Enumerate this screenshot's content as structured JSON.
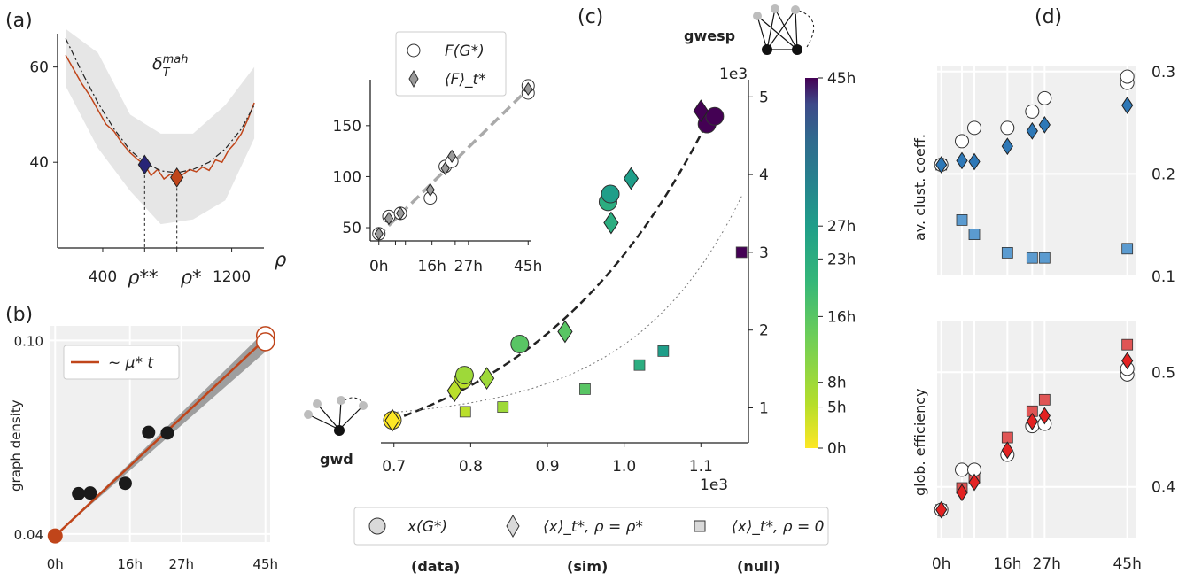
{
  "panel_labels": {
    "a": "(a)",
    "b": "(b)",
    "c": "(c)",
    "d": "(d)"
  },
  "chart_data": [
    {
      "id": "a",
      "type": "line",
      "title": "δ_T^mah",
      "xlabel": "ρ",
      "xticks": [
        "400",
        "1200"
      ],
      "yticks": [
        "40",
        "60"
      ],
      "xlim": [
        120,
        1400
      ],
      "ylim": [
        22,
        67
      ],
      "markers": [
        {
          "label": "ρ**",
          "x": 660,
          "y": 39.5,
          "color": "#272477"
        },
        {
          "label": "ρ*",
          "x": 860,
          "y": 36.8,
          "color": "#c0451a"
        }
      ],
      "series": [
        {
          "role": "simulated",
          "color": "#c0451a",
          "x": [
            170,
            220,
            270,
            320,
            370,
            420,
            470,
            520,
            570,
            620,
            660,
            700,
            740,
            780,
            820,
            860,
            900,
            940,
            980,
            1020,
            1060,
            1100,
            1140,
            1180,
            1220,
            1260,
            1300,
            1340
          ],
          "y": [
            62.5,
            59.5,
            56.5,
            54,
            51,
            48,
            46.5,
            44,
            42,
            40.5,
            39.5,
            37.2,
            38.5,
            36.5,
            37.5,
            36.8,
            37.5,
            38.5,
            38,
            39,
            38.3,
            40.5,
            40,
            42.5,
            44,
            46,
            49,
            52.5
          ]
        },
        {
          "role": "fit",
          "color": "#222222",
          "x": [
            170,
            270,
            370,
            470,
            570,
            660,
            760,
            860,
            960,
            1060,
            1160,
            1260,
            1340
          ],
          "y": [
            66,
            59,
            52.5,
            47,
            42.5,
            40,
            38.2,
            37.8,
            38.5,
            40,
            42.8,
            47,
            52
          ]
        }
      ],
      "band": {
        "x": [
          170,
          370,
          570,
          760,
          960,
          1160,
          1340
        ],
        "lower": [
          56,
          43,
          34,
          27,
          28,
          32,
          45
        ],
        "upper": [
          68,
          63,
          50,
          46,
          46,
          52,
          60
        ]
      }
    },
    {
      "id": "b",
      "type": "scatter",
      "ylabel": "graph density",
      "xticks": [
        "0h",
        "16h",
        "27h",
        "45h"
      ],
      "xtick_values": [
        0,
        16,
        27,
        45
      ],
      "yticks": [
        "0.04",
        "0.10"
      ],
      "ytick_values": [
        0.04,
        0.1
      ],
      "xlim": [
        -1,
        46
      ],
      "ylim": [
        0.0375,
        0.1045
      ],
      "legend": "~ μ* t",
      "line": {
        "x": [
          0,
          45
        ],
        "y": [
          0.0394,
          0.1005
        ],
        "color": "#c0451a"
      },
      "points": {
        "x": [
          5,
          7.5,
          15,
          20,
          24,
          45,
          45
        ],
        "y": [
          0.0525,
          0.0527,
          0.0557,
          0.0715,
          0.0713,
          0.1015,
          0.1015
        ],
        "colors": [
          "#1a1a1a",
          "#1a1a1a",
          "#1a1a1a",
          "#1a1a1a",
          "#1a1a1a",
          "#ffffff",
          "#ffffff"
        ]
      },
      "first_point": {
        "x": 0,
        "y": 0.0394,
        "color": "#c0451a"
      }
    },
    {
      "id": "a_inset",
      "type": "scatter",
      "xticks": [
        "0h",
        "16h",
        "27h",
        "45h"
      ],
      "yticks": [
        "50",
        "100",
        "150"
      ],
      "xlim": [
        -1,
        46
      ],
      "ylim": [
        37,
        195
      ],
      "legend": [
        "F(G*)",
        "⟨F⟩_t*"
      ],
      "data": {
        "x": [
          0,
          3,
          6.5,
          15.5,
          20,
          22,
          45,
          45
        ],
        "y": [
          44,
          61,
          64,
          79,
          110,
          115,
          182,
          189
        ]
      },
      "sim": {
        "x": [
          0,
          3,
          6.5,
          15.5,
          20,
          22,
          45
        ],
        "y": [
          44,
          59,
          64,
          87,
          108,
          120,
          186
        ]
      }
    },
    {
      "id": "c",
      "type": "scatter",
      "xlabel": "1e3",
      "ylabel": "1e3",
      "xticks": [
        "0.7",
        "0.8",
        "0.9",
        "1.0",
        "1.1"
      ],
      "yticks": [
        "1",
        "2",
        "3",
        "4",
        "5"
      ],
      "xlim": [
        0.683,
        1.162
      ],
      "ylim": [
        0.55,
        5.22
      ],
      "node_labels": {
        "x": "gwd",
        "y": "gwesp"
      },
      "colorbar": {
        "ticks": [
          "0h",
          "5h",
          "8h",
          "16h",
          "23h",
          "27h",
          "45h"
        ],
        "values": [
          0,
          5,
          8,
          16,
          23,
          27,
          45
        ]
      },
      "data": {
        "x": [
          0.698,
          0.79,
          0.792,
          0.864,
          0.979,
          0.982,
          1.108,
          1.118
        ],
        "y": [
          0.84,
          1.36,
          1.42,
          1.82,
          3.65,
          3.75,
          4.65,
          4.75
        ],
        "t": [
          0,
          5,
          8,
          16,
          23,
          27,
          45,
          45
        ]
      },
      "sim": {
        "x": [
          0.698,
          0.779,
          0.821,
          0.923,
          0.983,
          1.009,
          1.1
        ],
        "y": [
          0.84,
          1.22,
          1.38,
          1.98,
          3.38,
          3.95,
          4.82
        ],
        "t": [
          0,
          5,
          8,
          16,
          23,
          27,
          45
        ]
      },
      "null": {
        "x": [
          0.698,
          0.793,
          0.842,
          0.949,
          1.02,
          1.051,
          1.153
        ],
        "y": [
          0.84,
          0.95,
          1.01,
          1.24,
          1.55,
          1.73,
          3.0
        ],
        "t": [
          0,
          5,
          8,
          16,
          23,
          27,
          45
        ]
      }
    },
    {
      "id": "d_top",
      "type": "scatter",
      "ylabel": "av. clust. coeff.",
      "xticks": [
        "0h",
        "16h",
        "27h",
        "45h"
      ],
      "yticks": [
        "0.1",
        "0.2",
        "0.3"
      ],
      "xlim": [
        -1,
        47
      ],
      "ylim": [
        0.1,
        0.305
      ],
      "data": {
        "x": [
          0,
          5,
          8,
          16,
          22,
          25,
          45,
          45
        ],
        "y": [
          0.209,
          0.232,
          0.245,
          0.245,
          0.261,
          0.274,
          0.289,
          0.295
        ]
      },
      "sim": {
        "x": [
          0,
          5,
          8,
          16,
          22,
          25,
          45
        ],
        "y": [
          0.209,
          0.213,
          0.212,
          0.227,
          0.242,
          0.248,
          0.267
        ]
      },
      "null": {
        "x": [
          0,
          5,
          8,
          16,
          22,
          25,
          45
        ],
        "y": [
          0.209,
          0.155,
          0.141,
          0.123,
          0.118,
          0.118,
          0.127
        ]
      }
    },
    {
      "id": "d_bottom",
      "type": "scatter",
      "ylabel": "glob. efficiency",
      "xticks": [
        "0h",
        "16h",
        "27h",
        "45h"
      ],
      "yticks": [
        "0.4",
        "0.5"
      ],
      "xlim": [
        -1,
        47
      ],
      "ylim": [
        0.355,
        0.545
      ],
      "data": {
        "x": [
          0,
          5,
          8,
          16,
          22,
          25,
          45,
          45
        ],
        "y": [
          0.38,
          0.415,
          0.415,
          0.428,
          0.453,
          0.455,
          0.498,
          0.503
        ]
      },
      "sim": {
        "x": [
          0,
          5,
          8,
          16,
          22,
          25,
          45
        ],
        "y": [
          0.38,
          0.395,
          0.404,
          0.432,
          0.457,
          0.462,
          0.51
        ]
      },
      "null": {
        "x": [
          0,
          5,
          8,
          16,
          22,
          25,
          45
        ],
        "y": [
          0.38,
          0.399,
          0.408,
          0.443,
          0.466,
          0.476,
          0.524
        ]
      }
    }
  ],
  "bottom_legend": {
    "items": [
      "x(G*)",
      "⟨x⟩_t*, ρ = ρ*",
      "⟨x⟩_t*, ρ = 0"
    ],
    "captions": [
      "(data)",
      "(sim)",
      "(null)"
    ]
  }
}
